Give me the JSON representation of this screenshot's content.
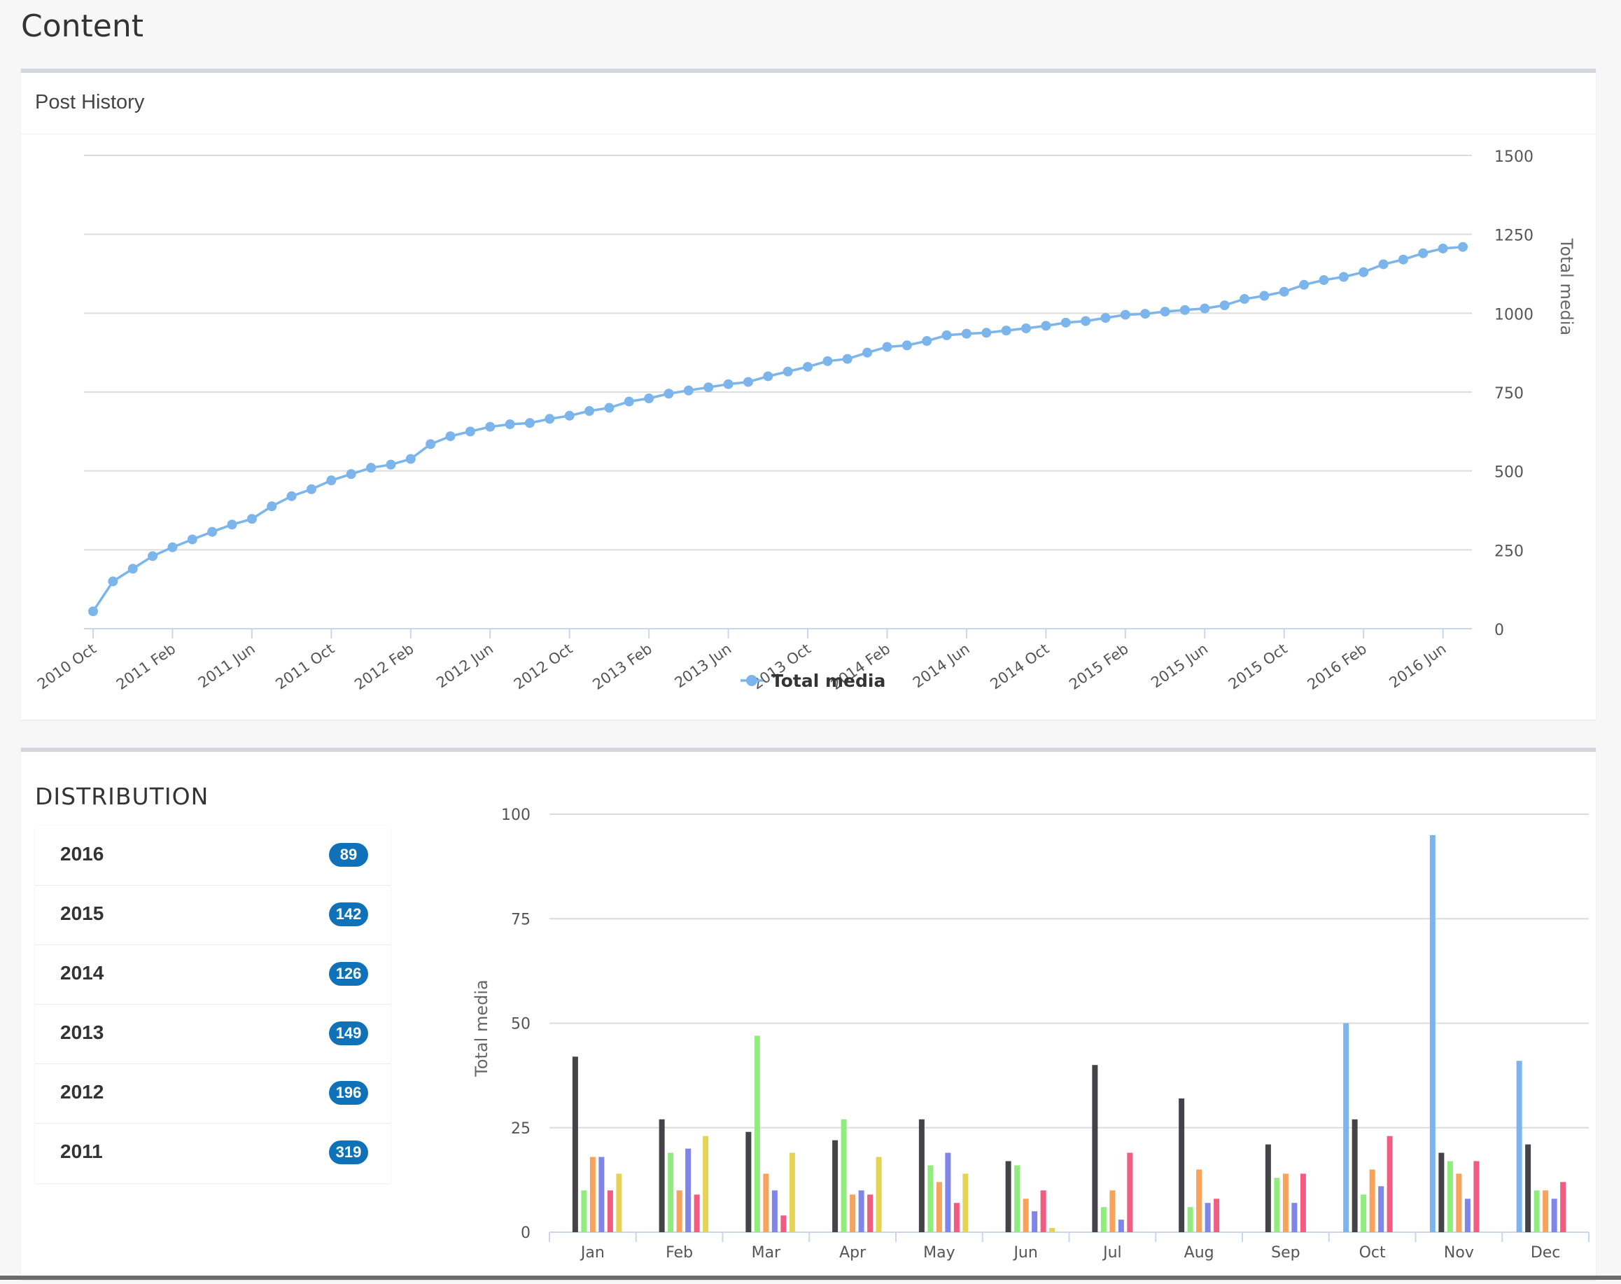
{
  "page": {
    "title": "Content"
  },
  "history_panel": {
    "title": "Post History"
  },
  "distribution_panel": {
    "title": "DISTRIBUTION",
    "years": [
      {
        "year": "2016",
        "count": "89"
      },
      {
        "year": "2015",
        "count": "142"
      },
      {
        "year": "2014",
        "count": "126"
      },
      {
        "year": "2013",
        "count": "149"
      },
      {
        "year": "2012",
        "count": "196"
      },
      {
        "year": "2011",
        "count": "319"
      }
    ]
  },
  "chart_data": [
    {
      "type": "line",
      "title": "",
      "xlabel": "",
      "ylabel": "Total media",
      "ylim": [
        0,
        1500
      ],
      "yticks": [
        0,
        250,
        500,
        750,
        1000,
        1250,
        1500
      ],
      "x_start": "2010 Oct",
      "xtick_labels": [
        "2010 Oct",
        "2011 Feb",
        "2011 Jun",
        "2011 Oct",
        "2012 Feb",
        "2012 Jun",
        "2012 Oct",
        "2013 Feb",
        "2013 Jun",
        "2013 Oct",
        "2014 Feb",
        "2014 Jun",
        "2014 Oct",
        "2015 Feb",
        "2015 Jun",
        "2015 Oct",
        "2016 Feb",
        "2016 Jun"
      ],
      "grid": true,
      "legend_position": "bottom",
      "series": [
        {
          "name": "Total media",
          "color": "#7cb5ec",
          "values": [
            55,
            150,
            190,
            230,
            258,
            283,
            307,
            330,
            348,
            388,
            420,
            442,
            470,
            490,
            510,
            520,
            538,
            585,
            610,
            625,
            640,
            648,
            652,
            665,
            675,
            690,
            700,
            720,
            730,
            745,
            755,
            765,
            775,
            782,
            800,
            815,
            830,
            848,
            855,
            875,
            893,
            898,
            912,
            930,
            935,
            938,
            945,
            952,
            960,
            970,
            975,
            985,
            995,
            998,
            1005,
            1010,
            1015,
            1025,
            1045,
            1055,
            1068,
            1090,
            1105,
            1115,
            1130,
            1155,
            1170,
            1190,
            1205,
            1210
          ]
        }
      ]
    },
    {
      "type": "bar",
      "title": "",
      "xlabel": "",
      "ylabel": "Total media",
      "ylim": [
        0,
        100
      ],
      "yticks": [
        0,
        25,
        50,
        75,
        100
      ],
      "categories": [
        "Jan",
        "Feb",
        "Mar",
        "Apr",
        "May",
        "Jun",
        "Jul",
        "Aug",
        "Sep",
        "Oct",
        "Nov",
        "Dec"
      ],
      "grid": true,
      "series": [
        {
          "color": "#7cb5ec",
          "values": [
            0,
            0,
            0,
            0,
            0,
            0,
            0,
            0,
            0,
            50,
            95,
            41
          ]
        },
        {
          "color": "#434348",
          "values": [
            42,
            27,
            24,
            22,
            27,
            17,
            40,
            32,
            21,
            27,
            19,
            21
          ]
        },
        {
          "color": "#90ed7d",
          "values": [
            10,
            19,
            47,
            27,
            16,
            16,
            6,
            6,
            13,
            9,
            17,
            10
          ]
        },
        {
          "color": "#f7a35c",
          "values": [
            18,
            10,
            14,
            9,
            12,
            8,
            10,
            15,
            14,
            15,
            14,
            10
          ]
        },
        {
          "color": "#8085e9",
          "values": [
            18,
            20,
            10,
            10,
            19,
            5,
            3,
            7,
            7,
            11,
            8,
            8
          ]
        },
        {
          "color": "#f15c80",
          "values": [
            10,
            9,
            4,
            9,
            7,
            10,
            19,
            8,
            14,
            23,
            17,
            12
          ]
        },
        {
          "color": "#e4d354",
          "values": [
            14,
            23,
            19,
            18,
            14,
            1,
            0,
            0,
            0,
            0,
            0,
            0
          ]
        }
      ]
    }
  ]
}
